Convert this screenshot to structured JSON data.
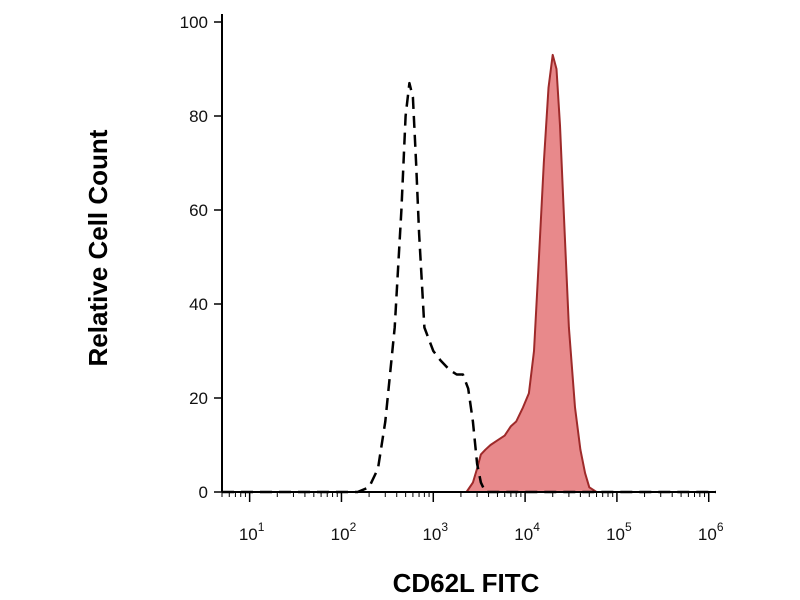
{
  "chart_data": {
    "type": "area",
    "xlabel": "CD62L FITC",
    "ylabel": "Relative Cell Count",
    "x_scale": "log",
    "xlim": [
      5,
      1200000
    ],
    "ylim": [
      0,
      100
    ],
    "y_ticks": [
      0,
      20,
      40,
      60,
      80,
      100
    ],
    "y_tick_labels": [
      "0",
      "20",
      "40",
      "60",
      "80",
      "100"
    ],
    "x_ticks": [
      10,
      100,
      1000,
      10000,
      100000,
      1000000
    ],
    "x_tick_labels": [
      {
        "base": "10",
        "exp": "1"
      },
      {
        "base": "10",
        "exp": "2"
      },
      {
        "base": "10",
        "exp": "3"
      },
      {
        "base": "10",
        "exp": "4"
      },
      {
        "base": "10",
        "exp": "5"
      },
      {
        "base": "10",
        "exp": "6"
      }
    ],
    "grid": false,
    "legend": "none",
    "series": [
      {
        "style": "dashed",
        "color": "#000000",
        "fill": "none",
        "x": [
          5,
          100,
          150,
          200,
          250,
          300,
          380,
          450,
          500,
          550,
          600,
          650,
          700,
          800,
          1000,
          1200,
          1500,
          1800,
          2100,
          2400,
          2700,
          3000,
          3300,
          3700,
          4500,
          1200000
        ],
        "y": [
          0,
          0,
          0,
          1,
          5,
          15,
          35,
          60,
          80,
          87,
          84,
          70,
          55,
          35,
          30,
          28,
          26,
          25,
          25,
          22,
          15,
          6,
          2,
          0,
          0,
          0
        ]
      },
      {
        "style": "solid",
        "color": "#9e2a2a",
        "fill": "#e8898b",
        "x": [
          5,
          2300,
          2700,
          3000,
          3300,
          3700,
          4200,
          5000,
          6000,
          7000,
          8000,
          9500,
          11000,
          12500,
          14000,
          16000,
          18000,
          20000,
          22000,
          24000,
          27000,
          30000,
          35000,
          40000,
          45000,
          50000,
          60000,
          1200000
        ],
        "y": [
          0,
          0,
          2,
          5,
          8,
          9,
          10,
          11,
          12,
          14,
          15,
          18,
          21,
          30,
          48,
          70,
          86,
          93,
          90,
          78,
          55,
          35,
          18,
          9,
          4,
          1,
          0,
          0
        ]
      }
    ]
  }
}
